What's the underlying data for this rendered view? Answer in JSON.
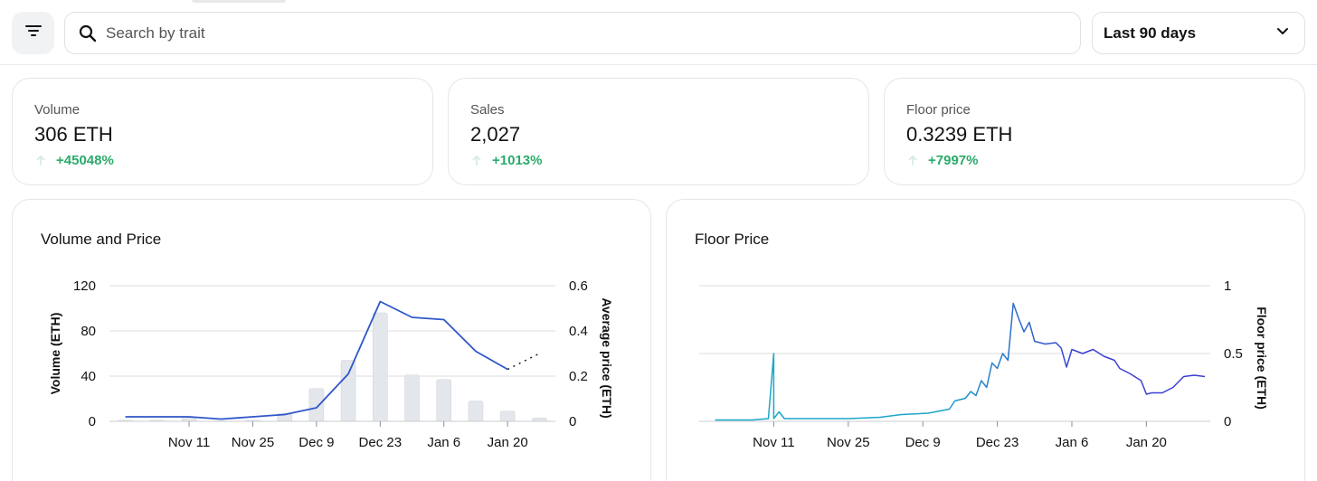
{
  "toolbar": {
    "filter_icon": "filter-icon",
    "search_placeholder": "Search by trait",
    "search_value": "",
    "range_selected": "Last 90 days"
  },
  "stats": [
    {
      "label": "Volume",
      "value": "306 ETH",
      "change": "+45048%"
    },
    {
      "label": "Sales",
      "value": "2,027",
      "change": "+1013%"
    },
    {
      "label": "Floor price",
      "value": "0.3239 ETH",
      "change": "+7997%"
    }
  ],
  "colors": {
    "positive": "#2aab6a",
    "volume_bar": "#e3e6ea",
    "price_line": "#2f56c9",
    "floor_start": "#1aa7c7",
    "floor_end": "#3b3fd1",
    "grid": "#dcdee2"
  },
  "chart_data": [
    {
      "type": "bar",
      "title": "Volume and Price",
      "ylabel": "Volume (ETH)",
      "y2label": "Average price (ETH)",
      "ylim": [
        0,
        120
      ],
      "y2lim": [
        0,
        0.6
      ],
      "y_ticks": [
        "0",
        "40",
        "80",
        "120"
      ],
      "y2_ticks": [
        "0",
        "0.2",
        "0.4",
        "0.6"
      ],
      "x_ticks": [
        "Nov 11",
        "Nov 25",
        "Dec 9",
        "Dec 23",
        "Jan 6",
        "Jan 20"
      ],
      "x": [
        "Oct 28",
        "Nov 4",
        "Nov 11",
        "Nov 18",
        "Nov 25",
        "Dec 2",
        "Dec 9",
        "Dec 16",
        "Dec 23",
        "Dec 30",
        "Jan 6",
        "Jan 13",
        "Jan 20",
        "Jan 27"
      ],
      "series": [
        {
          "kind": "bar",
          "axis": "left",
          "values": [
            1,
            1,
            4,
            0.5,
            1,
            7,
            29,
            54,
            96,
            41,
            37,
            18,
            9,
            3
          ]
        },
        {
          "kind": "line",
          "axis": "right",
          "values": [
            0.02,
            0.02,
            0.02,
            0.01,
            0.02,
            0.03,
            0.06,
            0.21,
            0.53,
            0.46,
            0.45,
            0.31,
            0.23,
            0.3
          ],
          "dashed_last_segment": true
        }
      ],
      "grid": true,
      "legend": "none"
    },
    {
      "type": "line",
      "title": "Floor Price",
      "y2label": "Floor price (ETH)",
      "y2lim": [
        0,
        1
      ],
      "y2_ticks": [
        "0",
        "0.5",
        "1"
      ],
      "x_ticks": [
        "Nov 11",
        "Nov 25",
        "Dec 9",
        "Dec 23",
        "Jan 6",
        "Jan 20"
      ],
      "series": [
        {
          "name": "",
          "points": [
            [
              "Oct 31",
              0.01
            ],
            [
              "Nov 7",
              0.01
            ],
            [
              "Nov 10",
              0.02
            ],
            [
              "Nov 11",
              0.5
            ],
            [
              "Nov 11",
              0.02
            ],
            [
              "Nov 12",
              0.07
            ],
            [
              "Nov 13",
              0.02
            ],
            [
              "Nov 25",
              0.02
            ],
            [
              "Dec 1",
              0.03
            ],
            [
              "Dec 5",
              0.05
            ],
            [
              "Dec 10",
              0.06
            ],
            [
              "Dec 14",
              0.09
            ],
            [
              "Dec 15",
              0.15
            ],
            [
              "Dec 17",
              0.17
            ],
            [
              "Dec 18",
              0.22
            ],
            [
              "Dec 19",
              0.19
            ],
            [
              "Dec 20",
              0.3
            ],
            [
              "Dec 21",
              0.25
            ],
            [
              "Dec 22",
              0.43
            ],
            [
              "Dec 23",
              0.39
            ],
            [
              "Dec 24",
              0.5
            ],
            [
              "Dec 25",
              0.45
            ],
            [
              "Dec 26",
              0.87
            ],
            [
              "Dec 27",
              0.76
            ],
            [
              "Dec 28",
              0.66
            ],
            [
              "Dec 29",
              0.73
            ],
            [
              "Dec 30",
              0.59
            ],
            [
              "Jan 1",
              0.57
            ],
            [
              "Jan 3",
              0.58
            ],
            [
              "Jan 4",
              0.54
            ],
            [
              "Jan 5",
              0.4
            ],
            [
              "Jan 6",
              0.53
            ],
            [
              "Jan 8",
              0.5
            ],
            [
              "Jan 10",
              0.53
            ],
            [
              "Jan 12",
              0.48
            ],
            [
              "Jan 14",
              0.45
            ],
            [
              "Jan 15",
              0.39
            ],
            [
              "Jan 17",
              0.35
            ],
            [
              "Jan 19",
              0.3
            ],
            [
              "Jan 20",
              0.2
            ],
            [
              "Jan 21",
              0.21
            ],
            [
              "Jan 23",
              0.21
            ],
            [
              "Jan 25",
              0.25
            ],
            [
              "Jan 27",
              0.33
            ],
            [
              "Jan 29",
              0.34
            ],
            [
              "Jan 31",
              0.33
            ]
          ]
        }
      ],
      "grid": true,
      "legend": "none"
    }
  ]
}
